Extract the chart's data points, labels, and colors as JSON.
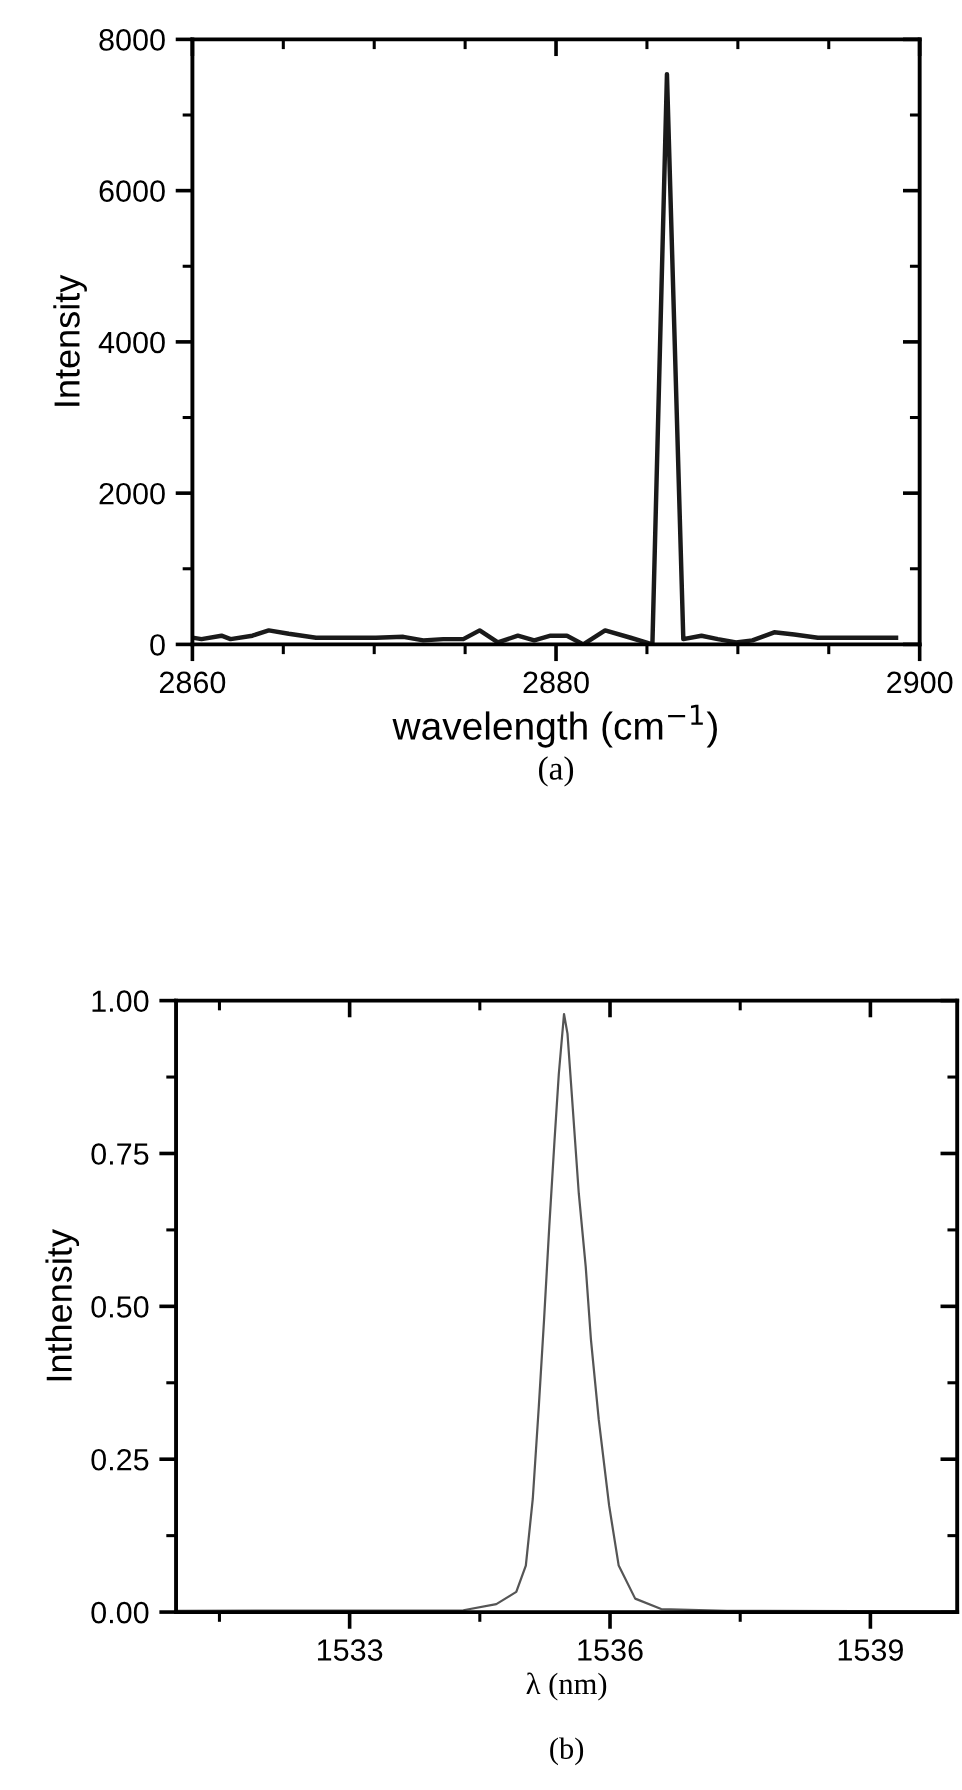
{
  "chart_data": [
    {
      "type": "line",
      "xlabel": "wavelength (cm$^{−1}$)",
      "ylabel": "Intensity",
      "annotations": [
        "(a)"
      ],
      "xlim": [
        2860,
        2900
      ],
      "ylim": [
        0,
        8000
      ],
      "xticks": [
        2860,
        {
          "value": 2865,
          "label": null
        },
        {
          "value": 2870,
          "label": null
        },
        {
          "value": 2875,
          "label": null
        },
        2880,
        {
          "value": 2885,
          "label": null
        },
        {
          "value": 2890,
          "label": null
        },
        {
          "value": 2895,
          "label": null
        },
        2900
      ],
      "yticks": [
        0,
        {
          "value": 1000,
          "label": null
        },
        2000,
        {
          "value": 3000,
          "label": null
        },
        4000,
        {
          "value": 5000,
          "label": null
        },
        6000,
        {
          "value": 7000,
          "label": null
        },
        8000
      ],
      "series": [
        {
          "color": "#1a1a1a",
          "x": [
            2860,
            2860.5,
            2861.6,
            2862.1,
            2863.3,
            2864.2,
            2865.3,
            2866.8,
            2868.2,
            2870.1,
            2871.6,
            2872.7,
            2873.8,
            2874.9,
            2875.8,
            2876.8,
            2877.9,
            2878.8,
            2879.7,
            2880.6,
            2881.5,
            2882.7,
            2884.1,
            2885.3,
            2886.1,
            2887.0,
            2888.0,
            2888.9,
            2889.9,
            2890.8,
            2892.0,
            2893.1,
            2894.4,
            2895.5,
            2896.9,
            2898.7
          ],
          "values": [
            90,
            70,
            115,
            70,
            115,
            185,
            140,
            88,
            88,
            88,
            100,
            53,
            70,
            70,
            185,
            26,
            115,
            53,
            115,
            115,
            0,
            185,
            88,
            0,
            7540,
            70,
            115,
            70,
            26,
            53,
            160,
            130,
            88,
            88,
            88,
            88
          ]
        }
      ]
    },
    {
      "type": "line",
      "xlabel": "λ (nm)",
      "ylabel": "Inthensity",
      "annotations": [
        "(b)"
      ],
      "xlim": [
        1531,
        1540
      ],
      "ylim": [
        0,
        1
      ],
      "xticks": [
        {
          "value": 1531.5,
          "label": null
        },
        1533,
        {
          "value": 1534.5,
          "label": null
        },
        1536,
        {
          "value": 1537.5,
          "label": null
        },
        1539
      ],
      "yticks": [
        {
          "value": 0,
          "label": "0.00"
        },
        {
          "value": 0.125,
          "label": null
        },
        0.25,
        {
          "value": 0.375,
          "label": null
        },
        {
          "value": 0.5,
          "label": "0.50"
        },
        {
          "value": 0.625,
          "label": null
        },
        0.75,
        {
          "value": 0.875,
          "label": null
        },
        {
          "value": 1,
          "label": "1.00"
        }
      ],
      "series": [
        {
          "color": "#555555",
          "x": [
            1531.0,
            1534.31,
            1534.69,
            1534.92,
            1535.03,
            1535.11,
            1535.18,
            1535.24,
            1535.3,
            1535.36,
            1535.41,
            1535.47,
            1535.51,
            1535.57,
            1535.64,
            1535.72,
            1535.78,
            1535.87,
            1535.99,
            1536.1,
            1536.29,
            1536.59,
            1537.35,
            1539.93
          ],
          "values": [
            0.002,
            0.003,
            0.013,
            0.033,
            0.076,
            0.185,
            0.337,
            0.478,
            0.63,
            0.77,
            0.88,
            0.978,
            0.946,
            0.826,
            0.685,
            0.565,
            0.446,
            0.315,
            0.174,
            0.076,
            0.022,
            0.005,
            0.002,
            0.001
          ]
        }
      ]
    }
  ]
}
